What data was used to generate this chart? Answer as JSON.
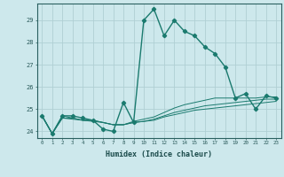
{
  "title": "",
  "xlabel": "Humidex (Indice chaleur)",
  "background_color": "#cde8ec",
  "grid_color": "#b8d8dc",
  "line_color": "#1a7a6e",
  "xlim": [
    -0.5,
    23.5
  ],
  "ylim": [
    23.7,
    29.75
  ],
  "yticks": [
    24,
    25,
    26,
    27,
    28,
    29
  ],
  "xticks": [
    0,
    1,
    2,
    3,
    4,
    5,
    6,
    7,
    8,
    9,
    10,
    11,
    12,
    13,
    14,
    15,
    16,
    17,
    18,
    19,
    20,
    21,
    22,
    23
  ],
  "series": [
    [
      24.7,
      23.9,
      24.7,
      24.7,
      24.6,
      24.5,
      24.1,
      24.0,
      25.3,
      24.4,
      29.0,
      29.5,
      28.3,
      29.0,
      28.5,
      28.3,
      27.8,
      27.5,
      26.9,
      25.5,
      25.7,
      25.0,
      25.6,
      25.5
    ],
    [
      24.7,
      23.9,
      24.7,
      24.6,
      24.5,
      24.5,
      24.4,
      24.3,
      24.3,
      24.45,
      24.55,
      24.65,
      24.85,
      25.05,
      25.2,
      25.3,
      25.4,
      25.5,
      25.5,
      25.5,
      25.5,
      25.5,
      25.55,
      25.55
    ],
    [
      24.7,
      23.9,
      24.6,
      24.6,
      24.5,
      24.5,
      24.4,
      24.3,
      24.3,
      24.4,
      24.45,
      24.55,
      24.7,
      24.85,
      24.95,
      25.05,
      25.15,
      25.2,
      25.25,
      25.3,
      25.35,
      25.4,
      25.45,
      25.45
    ],
    [
      24.7,
      23.9,
      24.6,
      24.55,
      24.5,
      24.45,
      24.4,
      24.3,
      24.3,
      24.4,
      24.45,
      24.5,
      24.65,
      24.75,
      24.85,
      24.95,
      25.0,
      25.05,
      25.1,
      25.15,
      25.2,
      25.25,
      25.3,
      25.35
    ]
  ]
}
